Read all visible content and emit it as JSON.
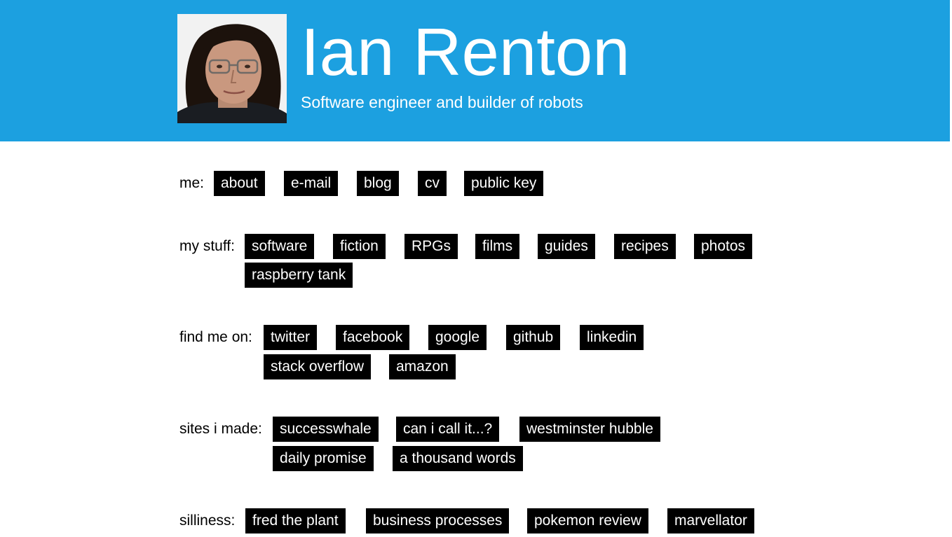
{
  "header": {
    "title": "Ian Renton",
    "subtitle": "Software engineer and builder of robots",
    "background_color": "#1ca0e0"
  },
  "sections": {
    "me": {
      "label": "me:",
      "links": [
        "about",
        "e-mail",
        "blog",
        "cv",
        "public key"
      ]
    },
    "my_stuff": {
      "label": "my stuff:",
      "links": [
        "software",
        "fiction",
        "RPGs",
        "films",
        "guides",
        "recipes",
        "photos",
        "raspberry tank"
      ]
    },
    "find_me_on": {
      "label": "find me on:",
      "links": [
        "twitter",
        "facebook",
        "google",
        "github",
        "linkedin",
        "stack overflow",
        "amazon"
      ]
    },
    "sites_i_made": {
      "label": "sites i made:",
      "links": [
        "successwhale",
        "can i call it...?",
        "westminster hubble",
        "daily promise",
        "a thousand words"
      ]
    },
    "silliness": {
      "label": "silliness:",
      "links": [
        "fred the plant",
        "business processes",
        "pokemon review",
        "marvellator"
      ]
    }
  }
}
